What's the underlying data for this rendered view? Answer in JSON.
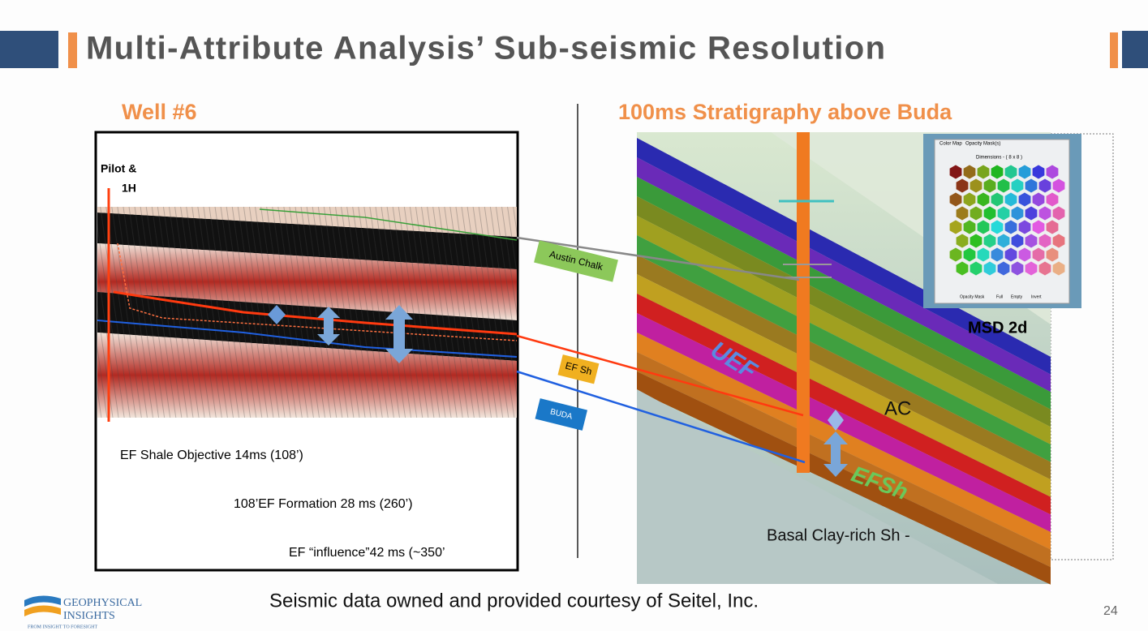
{
  "header": {
    "title": "Multi-Attribute Analysis’ Sub-seismic Resolution"
  },
  "left_panel": {
    "heading": "Well #6",
    "well_label": [
      "Pilot &",
      "1H"
    ],
    "notes": [
      "EF Shale Objective 14ms (108’)",
      "108’EF Formation 28 ms (260’)",
      "EF “influence”42 ms (~350’"
    ]
  },
  "horizons": [
    "Austin Chalk",
    "EF Sh",
    "BUDA"
  ],
  "right_panel": {
    "heading": "100ms Stratigraphy above Buda",
    "labels": [
      "UEF",
      "AC",
      "EFSh",
      "Basal Clay-rich Sh -"
    ],
    "inset": {
      "tabs": [
        "Color Map",
        "Opacity Mask(s)"
      ],
      "dimensions": "Dimensions - ( 8 x 8 )",
      "mask_label": "Opacity Mask",
      "buttons": [
        "Full",
        "Empty",
        "Invert"
      ],
      "caption": "MSD 2d"
    }
  },
  "footer": {
    "credit": "Seismic data owned and provided courtesy of Seitel, Inc.",
    "page": "24",
    "logo": [
      "GEOPHYSICAL",
      "INSIGHTS",
      "FROM INSIGHT TO FORESIGHT"
    ]
  }
}
